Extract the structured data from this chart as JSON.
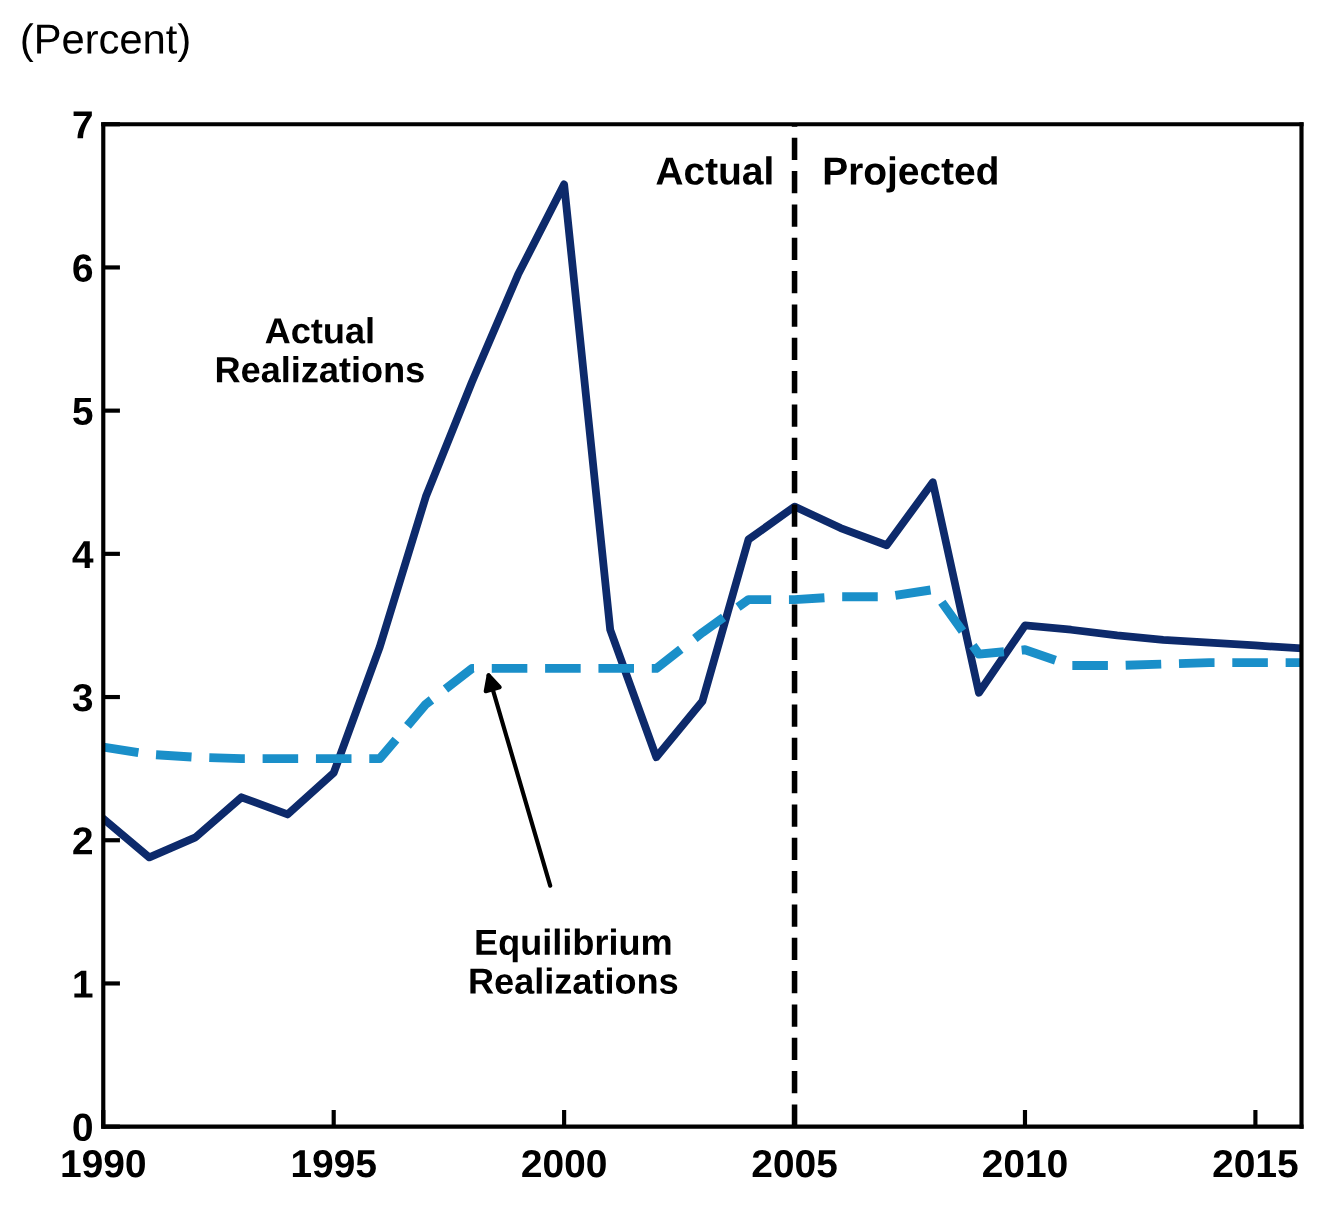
{
  "chart_data": {
    "type": "line",
    "ylabel": "(Percent)",
    "x": [
      1990,
      1991,
      1992,
      1993,
      1994,
      1995,
      1996,
      1997,
      1998,
      1999,
      2000,
      2001,
      2002,
      2003,
      2004,
      2005,
      2006,
      2007,
      2008,
      2009,
      2010,
      2011,
      2012,
      2013,
      2014,
      2015,
      2016
    ],
    "series": [
      {
        "name": "Actual\nRealizations",
        "color": "#0d2a6b",
        "line_style": "solid",
        "values": [
          2.15,
          1.88,
          2.02,
          2.3,
          2.18,
          2.47,
          3.35,
          4.4,
          5.2,
          5.95,
          6.58,
          3.47,
          2.58,
          2.97,
          4.1,
          4.33,
          4.18,
          4.06,
          4.5,
          3.03,
          3.5,
          3.47,
          3.43,
          3.4,
          3.38,
          3.36,
          3.34
        ]
      },
      {
        "name": "Equilibrium\nRealizations",
        "color": "#1a8fc9",
        "line_style": "dashed",
        "values": [
          2.65,
          2.6,
          2.58,
          2.57,
          2.57,
          2.57,
          2.57,
          2.95,
          3.2,
          3.2,
          3.2,
          3.2,
          3.2,
          3.45,
          3.68,
          3.68,
          3.7,
          3.7,
          3.75,
          3.3,
          3.33,
          3.22,
          3.22,
          3.23,
          3.24,
          3.24,
          3.24
        ]
      }
    ],
    "ref_lines": [
      {
        "axis": "x",
        "value": 2005,
        "color": "#000000",
        "line_style": "dashed"
      }
    ],
    "annotations": [
      "Actual",
      "Projected"
    ],
    "xlim": [
      1990,
      2016
    ],
    "xticks": [
      1990,
      1995,
      2000,
      2005,
      2010,
      2015
    ],
    "ylim": [
      0,
      7
    ],
    "yticks": [
      0,
      1,
      2,
      3,
      4,
      5,
      6,
      7
    ],
    "grid": false,
    "legend": false,
    "marker": "none"
  }
}
